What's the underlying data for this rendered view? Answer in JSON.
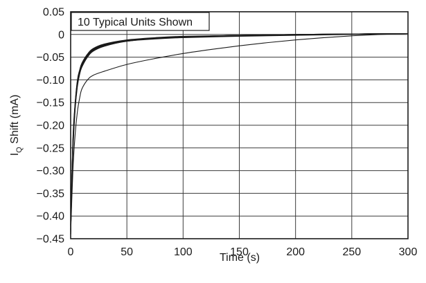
{
  "chart_data": {
    "type": "line",
    "title": "",
    "annotation": "10 Typical Units Shown",
    "xlabel": "Time (s)",
    "ylabel": {
      "main": "I",
      "subscript": "Q",
      "rest": " Shift (mA)"
    },
    "xlim": [
      0,
      300
    ],
    "ylim": [
      -0.45,
      0.05
    ],
    "x_ticks": [
      0,
      50,
      100,
      150,
      200,
      250,
      300
    ],
    "x_tick_labels": [
      "0",
      "50",
      "100",
      "150",
      "200",
      "250",
      "300"
    ],
    "y_ticks": [
      0.05,
      0,
      -0.05,
      -0.1,
      -0.15,
      -0.2,
      -0.25,
      -0.3,
      -0.35,
      -0.4,
      -0.45
    ],
    "y_tick_labels": [
      "0.05",
      "0",
      "−0.05",
      "−0.10",
      "−0.15",
      "−0.20",
      "−0.25",
      "−0.30",
      "−0.35",
      "−0.40",
      "−0.45"
    ],
    "grid": true,
    "series_color": "#1a1a1a",
    "series": [
      {
        "x": [
          0,
          2,
          4,
          6,
          8,
          10,
          15,
          20,
          30,
          50,
          75,
          100,
          150,
          200,
          250,
          300
        ],
        "y": [
          -0.44,
          -0.25,
          -0.16,
          -0.11,
          -0.085,
          -0.07,
          -0.048,
          -0.035,
          -0.024,
          -0.014,
          -0.009,
          -0.006,
          -0.003,
          -0.001,
          0.001,
          0.002
        ]
      },
      {
        "x": [
          0,
          2,
          4,
          6,
          8,
          10,
          15,
          20,
          30,
          50,
          75,
          100,
          150,
          200,
          250,
          300
        ],
        "y": [
          -0.43,
          -0.24,
          -0.155,
          -0.105,
          -0.082,
          -0.067,
          -0.046,
          -0.033,
          -0.023,
          -0.013,
          -0.008,
          -0.005,
          -0.002,
          0,
          0.001,
          0.002
        ]
      },
      {
        "x": [
          0,
          2,
          4,
          6,
          8,
          10,
          15,
          20,
          30,
          50,
          75,
          100,
          150,
          200,
          250,
          300
        ],
        "y": [
          -0.42,
          -0.23,
          -0.15,
          -0.1,
          -0.078,
          -0.063,
          -0.043,
          -0.031,
          -0.021,
          -0.012,
          -0.007,
          -0.004,
          -0.002,
          0,
          0.001,
          0.002
        ]
      },
      {
        "x": [
          0,
          2,
          4,
          6,
          8,
          10,
          15,
          20,
          30,
          50,
          75,
          100,
          150,
          200,
          250,
          300
        ],
        "y": [
          -0.44,
          -0.26,
          -0.165,
          -0.115,
          -0.088,
          -0.072,
          -0.05,
          -0.037,
          -0.026,
          -0.015,
          -0.01,
          -0.007,
          -0.004,
          -0.002,
          0,
          0.002
        ]
      },
      {
        "x": [
          0,
          2,
          4,
          6,
          8,
          10,
          15,
          20,
          30,
          50,
          75,
          100,
          150,
          200,
          250,
          300
        ],
        "y": [
          -0.43,
          -0.245,
          -0.158,
          -0.108,
          -0.084,
          -0.068,
          -0.047,
          -0.034,
          -0.024,
          -0.014,
          -0.009,
          -0.006,
          -0.003,
          -0.001,
          0.001,
          0.002
        ]
      },
      {
        "x": [
          0,
          2,
          4,
          6,
          8,
          10,
          15,
          20,
          30,
          50,
          75,
          100,
          150,
          200,
          250,
          300
        ],
        "y": [
          -0.42,
          -0.235,
          -0.152,
          -0.103,
          -0.08,
          -0.065,
          -0.045,
          -0.032,
          -0.022,
          -0.013,
          -0.008,
          -0.005,
          -0.002,
          0,
          0.001,
          0.002
        ]
      },
      {
        "x": [
          0,
          2,
          4,
          6,
          8,
          10,
          15,
          20,
          30,
          50,
          75,
          100,
          150,
          200,
          250,
          300
        ],
        "y": [
          -0.44,
          -0.255,
          -0.162,
          -0.112,
          -0.086,
          -0.071,
          -0.049,
          -0.036,
          -0.025,
          -0.015,
          -0.009,
          -0.006,
          -0.003,
          -0.001,
          0.001,
          0.002
        ]
      },
      {
        "x": [
          0,
          2,
          4,
          6,
          8,
          10,
          15,
          20,
          30,
          50,
          75,
          100,
          150,
          200,
          250,
          300
        ],
        "y": [
          -0.43,
          -0.248,
          -0.16,
          -0.11,
          -0.085,
          -0.069,
          -0.048,
          -0.035,
          -0.024,
          -0.014,
          -0.009,
          -0.005,
          -0.003,
          -0.001,
          0.001,
          0.002
        ]
      },
      {
        "x": [
          0,
          2,
          4,
          6,
          8,
          10,
          15,
          20,
          30,
          50,
          75,
          100,
          150,
          200,
          250,
          300
        ],
        "y": [
          -0.42,
          -0.238,
          -0.154,
          -0.106,
          -0.081,
          -0.066,
          -0.046,
          -0.033,
          -0.023,
          -0.013,
          -0.008,
          -0.005,
          -0.002,
          0,
          0.001,
          0.002
        ]
      },
      {
        "x": [
          0,
          2,
          4,
          6,
          8,
          10,
          15,
          20,
          30,
          50,
          75,
          100,
          125,
          150,
          175,
          200,
          225,
          250,
          275,
          300
        ],
        "y": [
          -0.44,
          -0.3,
          -0.22,
          -0.17,
          -0.14,
          -0.12,
          -0.1,
          -0.09,
          -0.081,
          -0.066,
          -0.053,
          -0.042,
          -0.033,
          -0.025,
          -0.018,
          -0.012,
          -0.007,
          -0.003,
          0,
          0.002
        ]
      }
    ]
  }
}
